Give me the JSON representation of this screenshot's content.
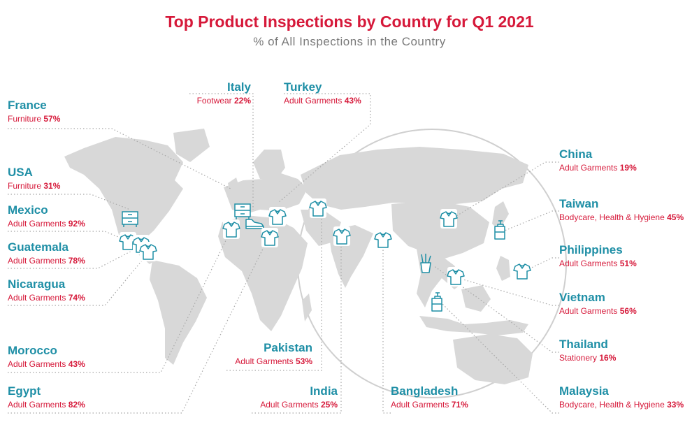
{
  "title": "Top Product Inspections by Country for Q1 2021",
  "subtitle": "% of All Inspections in the Country",
  "colors": {
    "title": "#d6193a",
    "country": "#1f8fa6",
    "category": "#d6193a",
    "land": "#d8d8d8",
    "icon": "#1f8fa6"
  },
  "countries": [
    {
      "name": "France",
      "category": "Furniture",
      "percent": "57%",
      "icon": "furniture-icon"
    },
    {
      "name": "USA",
      "category": "Furniture",
      "percent": "31%",
      "icon": "furniture-icon"
    },
    {
      "name": "Mexico",
      "category": "Adult Garments",
      "percent": "92%",
      "icon": "shirt-icon"
    },
    {
      "name": "Guatemala",
      "category": "Adult Garments",
      "percent": "78%",
      "icon": "shirt-icon"
    },
    {
      "name": "Nicaragua",
      "category": "Adult Garments",
      "percent": "74%",
      "icon": "shirt-icon"
    },
    {
      "name": "Morocco",
      "category": "Adult Garments",
      "percent": "43%",
      "icon": "shirt-icon"
    },
    {
      "name": "Egypt",
      "category": "Adult Garments",
      "percent": "82%",
      "icon": "shirt-icon"
    },
    {
      "name": "Italy",
      "category": "Footwear",
      "percent": "22%",
      "icon": "shoe-icon"
    },
    {
      "name": "Turkey",
      "category": "Adult Garments",
      "percent": "43%",
      "icon": "shirt-icon"
    },
    {
      "name": "Pakistan",
      "category": "Adult Garments",
      "percent": "53%",
      "icon": "shirt-icon"
    },
    {
      "name": "India",
      "category": "Adult Garments",
      "percent": "25%",
      "icon": "shirt-icon"
    },
    {
      "name": "Bangladesh",
      "category": "Adult Garments",
      "percent": "71%",
      "icon": "shirt-icon"
    },
    {
      "name": "China",
      "category": "Adult Garments",
      "percent": "19%",
      "icon": "shirt-icon"
    },
    {
      "name": "Taiwan",
      "category": "Bodycare, Health & Hygiene",
      "percent": "45%",
      "icon": "bottle-icon"
    },
    {
      "name": "Philippines",
      "category": "Adult Garments",
      "percent": "51%",
      "icon": "shirt-icon"
    },
    {
      "name": "Vietnam",
      "category": "Adult Garments",
      "percent": "56%",
      "icon": "shirt-icon"
    },
    {
      "name": "Thailand",
      "category": "Stationery",
      "percent": "16%",
      "icon": "pencil-cup-icon"
    },
    {
      "name": "Malaysia",
      "category": "Bodycare, Health & Hygiene",
      "percent": "33%",
      "icon": "bottle-icon"
    }
  ]
}
